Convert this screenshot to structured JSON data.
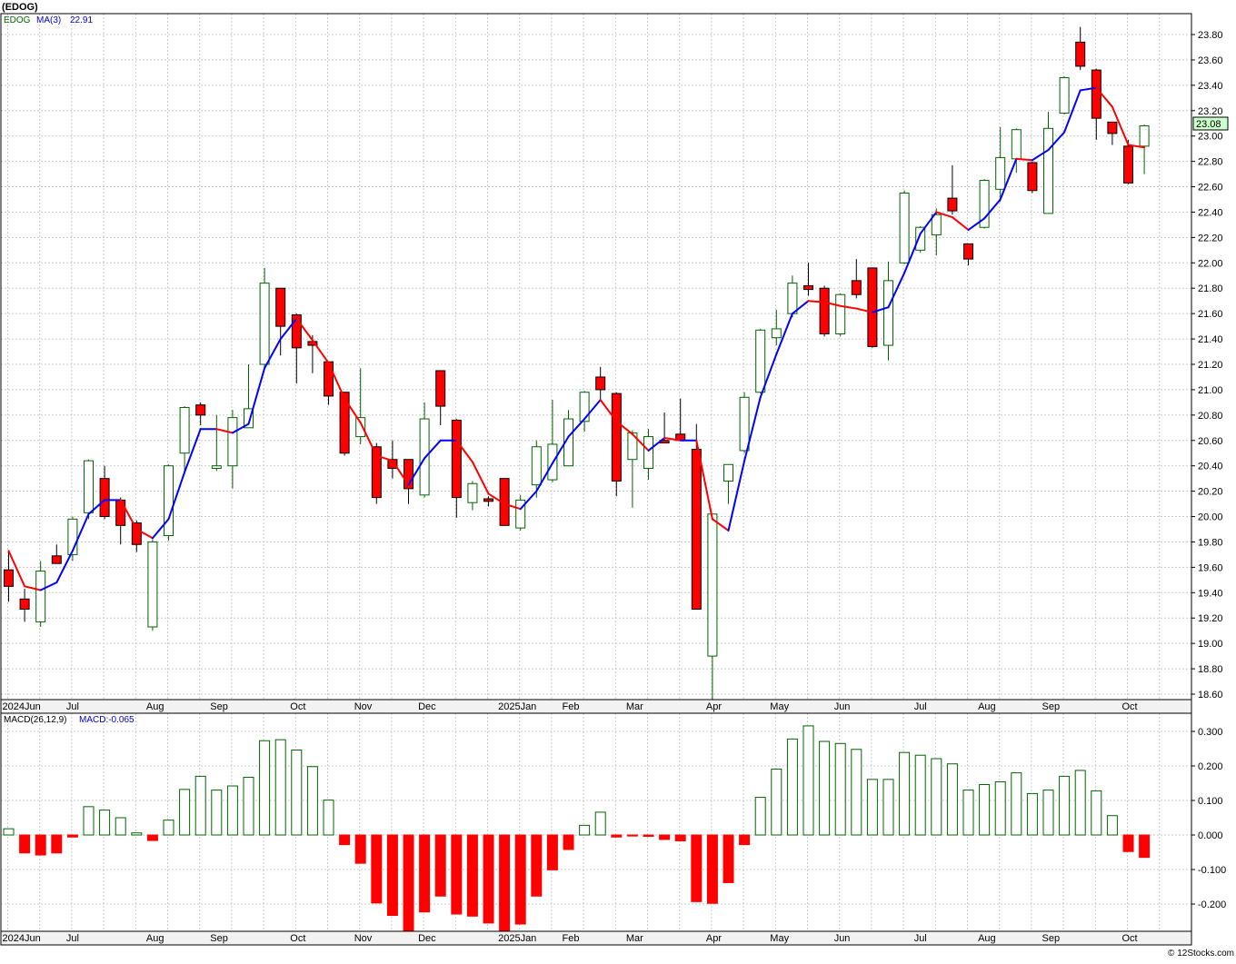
{
  "title": "(EDOG)",
  "legend": {
    "symbol": "EDOG",
    "ma_label": "MA(3)",
    "ma_value": "22.91"
  },
  "macd_legend": {
    "label": "MACD(26,12,9)",
    "value_label": "MACD:-0.065"
  },
  "last_price_label": "23.08",
  "watermark": "© 12Stocks.com",
  "colors": {
    "up_candle": "#006400",
    "down_candle": "#ff0000",
    "ma_up": "#0000ff",
    "ma_down": "#ff0000",
    "macd_pos": "#006400",
    "macd_neg": "#ff0000",
    "grid": "#c8c8c8",
    "last_price_bg": "#ccffcc"
  },
  "chart_data": [
    {
      "type": "candlestick",
      "title": "(EDOG)",
      "ylim": [
        18.55,
        23.95
      ],
      "yticks": [
        "18.60",
        "18.80",
        "19.00",
        "19.20",
        "19.40",
        "19.60",
        "19.80",
        "20.00",
        "20.20",
        "20.40",
        "20.60",
        "20.80",
        "21.00",
        "21.20",
        "21.40",
        "21.60",
        "21.80",
        "22.00",
        "22.20",
        "22.40",
        "22.60",
        "22.80",
        "23.00",
        "23.20",
        "23.40",
        "23.60",
        "23.80"
      ],
      "x_labels": [
        {
          "label": "2024Jun",
          "week": 0
        },
        {
          "label": "Jul",
          "week": 4
        },
        {
          "label": "Aug",
          "week": 9
        },
        {
          "label": "Sep",
          "week": 13
        },
        {
          "label": "Oct",
          "week": 18
        },
        {
          "label": "Nov",
          "week": 22
        },
        {
          "label": "Dec",
          "week": 26
        },
        {
          "label": "2025Jan",
          "week": 31
        },
        {
          "label": "Feb",
          "week": 35
        },
        {
          "label": "Mar",
          "week": 39
        },
        {
          "label": "Apr",
          "week": 44
        },
        {
          "label": "May",
          "week": 48
        },
        {
          "label": "Jun",
          "week": 52
        },
        {
          "label": "Jul",
          "week": 57
        },
        {
          "label": "Aug",
          "week": 61
        },
        {
          "label": "Sep",
          "week": 65
        },
        {
          "label": "Oct",
          "week": 70
        }
      ],
      "candles": [
        {
          "o": 19.58,
          "h": 19.72,
          "l": 19.33,
          "c": 19.45
        },
        {
          "o": 19.35,
          "h": 19.43,
          "l": 19.17,
          "c": 19.27
        },
        {
          "o": 19.17,
          "h": 19.65,
          "l": 19.13,
          "c": 19.57
        },
        {
          "o": 19.69,
          "h": 19.78,
          "l": 19.64,
          "c": 19.63
        },
        {
          "o": 19.7,
          "h": 20.0,
          "l": 19.65,
          "c": 19.98
        },
        {
          "o": 20.03,
          "h": 20.45,
          "l": 19.98,
          "c": 20.44
        },
        {
          "o": 20.3,
          "h": 20.4,
          "l": 19.98,
          "c": 20.0
        },
        {
          "o": 20.13,
          "h": 20.15,
          "l": 19.78,
          "c": 19.93
        },
        {
          "o": 19.95,
          "h": 19.97,
          "l": 19.72,
          "c": 19.78
        },
        {
          "o": 19.13,
          "h": 19.82,
          "l": 19.1,
          "c": 19.8
        },
        {
          "o": 19.85,
          "h": 20.41,
          "l": 19.81,
          "c": 20.4
        },
        {
          "o": 20.5,
          "h": 20.87,
          "l": 20.35,
          "c": 20.86
        },
        {
          "o": 20.88,
          "h": 20.9,
          "l": 20.72,
          "c": 20.8
        },
        {
          "o": 20.38,
          "h": 20.8,
          "l": 20.36,
          "c": 20.4
        },
        {
          "o": 20.4,
          "h": 20.84,
          "l": 20.22,
          "c": 20.78
        },
        {
          "o": 20.7,
          "h": 21.2,
          "l": 20.7,
          "c": 20.85
        },
        {
          "o": 21.2,
          "h": 21.96,
          "l": 21.17,
          "c": 21.84
        },
        {
          "o": 21.8,
          "h": 21.8,
          "l": 21.27,
          "c": 21.5
        },
        {
          "o": 21.59,
          "h": 21.6,
          "l": 21.05,
          "c": 21.33
        },
        {
          "o": 21.38,
          "h": 21.43,
          "l": 21.13,
          "c": 21.35
        },
        {
          "o": 21.22,
          "h": 21.22,
          "l": 20.88,
          "c": 20.95
        },
        {
          "o": 20.98,
          "h": 20.98,
          "l": 20.48,
          "c": 20.5
        },
        {
          "o": 20.63,
          "h": 21.17,
          "l": 20.57,
          "c": 20.78
        },
        {
          "o": 20.55,
          "h": 20.58,
          "l": 20.1,
          "c": 20.15
        },
        {
          "o": 20.45,
          "h": 20.6,
          "l": 20.3,
          "c": 20.38
        },
        {
          "o": 20.45,
          "h": 20.45,
          "l": 20.1,
          "c": 20.22
        },
        {
          "o": 20.17,
          "h": 20.9,
          "l": 20.15,
          "c": 20.77
        },
        {
          "o": 21.15,
          "h": 21.15,
          "l": 20.72,
          "c": 20.87
        },
        {
          "o": 20.76,
          "h": 20.77,
          "l": 19.99,
          "c": 20.15
        },
        {
          "o": 20.11,
          "h": 20.28,
          "l": 20.05,
          "c": 20.26
        },
        {
          "o": 20.14,
          "h": 20.16,
          "l": 20.08,
          "c": 20.12
        },
        {
          "o": 20.3,
          "h": 20.3,
          "l": 19.93,
          "c": 19.93
        },
        {
          "o": 19.91,
          "h": 20.17,
          "l": 19.89,
          "c": 20.13
        },
        {
          "o": 20.25,
          "h": 20.6,
          "l": 20.15,
          "c": 20.55
        },
        {
          "o": 20.29,
          "h": 20.92,
          "l": 20.27,
          "c": 20.57
        },
        {
          "o": 20.4,
          "h": 20.84,
          "l": 20.4,
          "c": 20.77
        },
        {
          "o": 20.75,
          "h": 20.99,
          "l": 20.67,
          "c": 20.98
        },
        {
          "o": 21.1,
          "h": 21.18,
          "l": 20.91,
          "c": 21.0
        },
        {
          "o": 20.97,
          "h": 20.98,
          "l": 20.16,
          "c": 20.28
        },
        {
          "o": 20.45,
          "h": 20.68,
          "l": 20.07,
          "c": 20.66
        },
        {
          "o": 20.38,
          "h": 20.69,
          "l": 20.29,
          "c": 20.63
        },
        {
          "o": 20.6,
          "h": 20.82,
          "l": 20.59,
          "c": 20.58
        },
        {
          "o": 20.65,
          "h": 20.93,
          "l": 20.6,
          "c": 20.6
        },
        {
          "o": 20.53,
          "h": 20.73,
          "l": 19.28,
          "c": 19.27
        },
        {
          "o": 18.9,
          "h": 20.02,
          "l": 18.54,
          "c": 20.02
        },
        {
          "o": 20.28,
          "h": 20.4,
          "l": 20.1,
          "c": 20.41
        },
        {
          "o": 20.52,
          "h": 20.98,
          "l": 20.5,
          "c": 20.94
        },
        {
          "o": 20.98,
          "h": 21.48,
          "l": 20.97,
          "c": 21.47
        },
        {
          "o": 21.41,
          "h": 21.63,
          "l": 21.35,
          "c": 21.48
        },
        {
          "o": 21.6,
          "h": 21.9,
          "l": 21.57,
          "c": 21.84
        },
        {
          "o": 21.82,
          "h": 22.0,
          "l": 21.74,
          "c": 21.79
        },
        {
          "o": 21.8,
          "h": 21.82,
          "l": 21.42,
          "c": 21.44
        },
        {
          "o": 21.44,
          "h": 21.76,
          "l": 21.42,
          "c": 21.75
        },
        {
          "o": 21.86,
          "h": 22.03,
          "l": 21.72,
          "c": 21.75
        },
        {
          "o": 21.96,
          "h": 21.96,
          "l": 21.33,
          "c": 21.34
        },
        {
          "o": 21.35,
          "h": 22.01,
          "l": 21.23,
          "c": 21.86
        },
        {
          "o": 22.0,
          "h": 22.57,
          "l": 21.99,
          "c": 22.55
        },
        {
          "o": 22.1,
          "h": 22.29,
          "l": 22.08,
          "c": 22.28
        },
        {
          "o": 22.22,
          "h": 22.43,
          "l": 22.06,
          "c": 22.38
        },
        {
          "o": 22.51,
          "h": 22.77,
          "l": 22.38,
          "c": 22.41
        },
        {
          "o": 22.15,
          "h": 22.15,
          "l": 21.98,
          "c": 22.03
        },
        {
          "o": 22.28,
          "h": 22.66,
          "l": 22.27,
          "c": 22.65
        },
        {
          "o": 22.58,
          "h": 23.07,
          "l": 22.48,
          "c": 22.83
        },
        {
          "o": 22.82,
          "h": 23.06,
          "l": 22.71,
          "c": 23.05
        },
        {
          "o": 22.79,
          "h": 22.8,
          "l": 22.55,
          "c": 22.57
        },
        {
          "o": 22.39,
          "h": 23.19,
          "l": 22.39,
          "c": 23.06
        },
        {
          "o": 23.18,
          "h": 23.47,
          "l": 23.17,
          "c": 23.46
        },
        {
          "o": 23.74,
          "h": 23.86,
          "l": 23.52,
          "c": 23.55
        },
        {
          "o": 23.52,
          "h": 23.53,
          "l": 22.97,
          "c": 23.14
        },
        {
          "o": 23.11,
          "h": 23.11,
          "l": 22.93,
          "c": 23.02
        },
        {
          "o": 22.92,
          "h": 22.97,
          "l": 22.62,
          "c": 22.63
        },
        {
          "o": 22.92,
          "h": 23.09,
          "l": 22.7,
          "c": 23.08
        }
      ],
      "ma_series": {
        "name": "MA(3)",
        "values": [
          19.73,
          19.45,
          19.42,
          19.48,
          19.73,
          20.02,
          20.13,
          20.13,
          19.9,
          19.83,
          19.98,
          20.35,
          20.69,
          20.69,
          20.66,
          20.73,
          21.17,
          21.4,
          21.56,
          21.39,
          21.21,
          20.93,
          20.74,
          20.48,
          20.44,
          20.25,
          20.46,
          20.6,
          20.6,
          20.43,
          20.18,
          20.1,
          20.06,
          20.2,
          20.42,
          20.63,
          20.77,
          20.92,
          20.75,
          20.65,
          20.52,
          20.62,
          20.6,
          20.6,
          19.98,
          19.89,
          20.44,
          20.94,
          21.28,
          21.6,
          21.7,
          21.69,
          21.66,
          21.64,
          21.61,
          21.65,
          21.92,
          22.23,
          22.4,
          22.36,
          22.26,
          22.35,
          22.5,
          22.82,
          22.81,
          22.89,
          23.03,
          23.36,
          23.38,
          23.23,
          22.93,
          22.91
        ]
      }
    },
    {
      "type": "bar",
      "title": "MACD(26,12,9)",
      "ylim": [
        -0.285,
        0.33
      ],
      "yticks": [
        "-0.200",
        "-0.100",
        "0.000",
        "0.100",
        "0.200",
        "0.300"
      ],
      "x_labels": [
        {
          "label": "2024Jun",
          "week": 0
        },
        {
          "label": "Jul",
          "week": 4
        },
        {
          "label": "Aug",
          "week": 9
        },
        {
          "label": "Sep",
          "week": 13
        },
        {
          "label": "Oct",
          "week": 18
        },
        {
          "label": "Nov",
          "week": 22
        },
        {
          "label": "Dec",
          "week": 26
        },
        {
          "label": "2025Jan",
          "week": 31
        },
        {
          "label": "Feb",
          "week": 35
        },
        {
          "label": "Mar",
          "week": 39
        },
        {
          "label": "Apr",
          "week": 44
        },
        {
          "label": "May",
          "week": 48
        },
        {
          "label": "Jun",
          "week": 52
        },
        {
          "label": "Jul",
          "week": 57
        },
        {
          "label": "Aug",
          "week": 61
        },
        {
          "label": "Sep",
          "week": 65
        },
        {
          "label": "Oct",
          "week": 70
        }
      ],
      "values": [
        0.018,
        -0.052,
        -0.058,
        -0.052,
        -0.006,
        0.082,
        0.072,
        0.05,
        0.006,
        -0.016,
        0.043,
        0.132,
        0.17,
        0.13,
        0.142,
        0.167,
        0.273,
        0.276,
        0.246,
        0.198,
        0.101,
        -0.028,
        -0.082,
        -0.197,
        -0.233,
        -0.28,
        -0.223,
        -0.177,
        -0.229,
        -0.235,
        -0.255,
        -0.28,
        -0.258,
        -0.177,
        -0.101,
        -0.042,
        0.028,
        0.066,
        -0.006,
        -0.003,
        -0.004,
        -0.013,
        -0.017,
        -0.193,
        -0.198,
        -0.138,
        -0.028,
        0.109,
        0.191,
        0.278,
        0.316,
        0.271,
        0.265,
        0.248,
        0.161,
        0.161,
        0.239,
        0.231,
        0.221,
        0.206,
        0.13,
        0.146,
        0.154,
        0.18,
        0.12,
        0.13,
        0.17,
        0.187,
        0.128,
        0.056,
        -0.048,
        -0.065
      ]
    }
  ]
}
